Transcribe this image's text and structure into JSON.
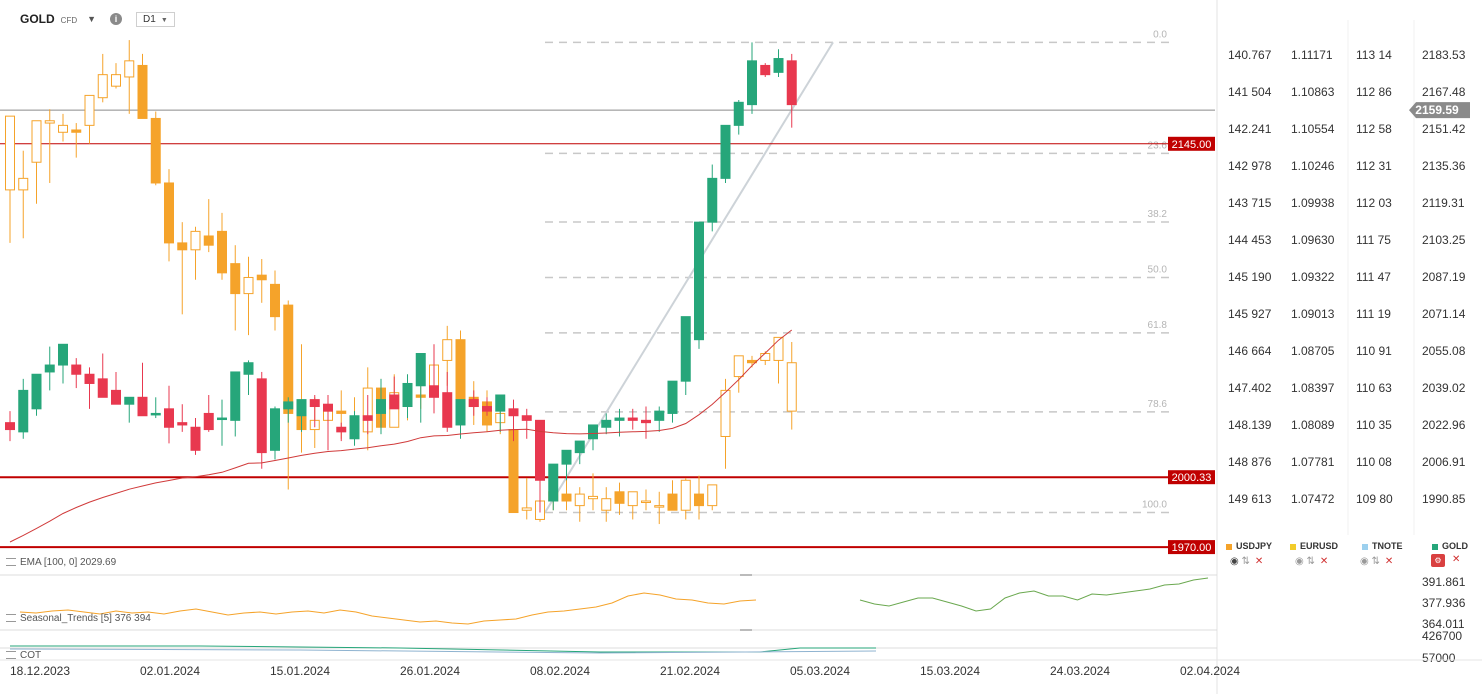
{
  "header": {
    "symbol": "GOLD",
    "type": "CFD",
    "info": "i",
    "timeframe": "D1"
  },
  "colors": {
    "bull": "#26a67a",
    "bear": "#e8384f",
    "compare": "#f5a32a",
    "ema": "#d03a3a",
    "level": "#c00000",
    "price_tag": "#8a8a8a"
  },
  "chart_data": {
    "type": "candlestick",
    "title": "GOLD CFD D1",
    "ylim": [
      1970.0,
      2190.0
    ],
    "x_labels": [
      "18.12.2023",
      "02.01.2024",
      "15.01.2024",
      "26.01.2024",
      "08.02.2024",
      "21.02.2024",
      "05.03.2024",
      "15.03.2024",
      "24.03.2024",
      "02.04.2024"
    ],
    "y_ticks": [
      "2183.53",
      "2167.48",
      "2151.42",
      "2135.36",
      "2119.31",
      "2103.25",
      "2087.19",
      "2071.14",
      "2055.08",
      "2039.02",
      "2022.96",
      "2006.91",
      "1990.85"
    ],
    "compare_ticks": {
      "usdjpy": [
        "140.767",
        "141 504",
        "142.241",
        "142 978",
        "143 715",
        "144 453",
        "145 190",
        "145 927",
        "146 664",
        "147.402",
        "148.139",
        "148 876",
        "149 613"
      ],
      "eurusd": [
        "1.11171",
        "1.10863",
        "1.10554",
        "1.10246",
        "1.09938",
        "1.09630",
        "1.09322",
        "1.09013",
        "1.08705",
        "1.08397",
        "1.08089",
        "1.07781",
        "1.07472"
      ],
      "tnote": [
        "113 14",
        "112 86",
        "112 58",
        "112 31",
        "112 03",
        "111 75",
        "111 47",
        "111 19",
        "110 91",
        "110 63",
        "110 35",
        "110 08",
        "109 80"
      ]
    },
    "last_price": "2159.59",
    "last_price_value": 2159.59,
    "levels": [
      {
        "value": 2145.0,
        "label": "2145.00"
      },
      {
        "value": 2000.33,
        "label": "2000.33"
      },
      {
        "value": 1970.0,
        "label": "1970.00"
      }
    ],
    "fib_labels": [
      "0.0",
      "23.6",
      "38.2",
      "50.0",
      "61.8",
      "78.6",
      "100.0"
    ],
    "fib_high": 2189.0,
    "fib_low": 1985.0,
    "gold_candles": [
      [
        2024,
        2029,
        2016,
        2021
      ],
      [
        2020,
        2043,
        2017,
        2038
      ],
      [
        2030,
        2045,
        2027,
        2045
      ],
      [
        2046,
        2057,
        2038,
        2049
      ],
      [
        2049,
        2058,
        2041,
        2058
      ],
      [
        2049,
        2052,
        2039,
        2045
      ],
      [
        2045,
        2048,
        2030,
        2041
      ],
      [
        2043,
        2054,
        2038,
        2035
      ],
      [
        2038,
        2046,
        2035,
        2032
      ],
      [
        2032,
        2034,
        2024,
        2035
      ],
      [
        2035,
        2050,
        2028,
        2027
      ],
      [
        2028,
        2035,
        2026,
        2028
      ],
      [
        2030,
        2040,
        2015,
        2022
      ],
      [
        2024,
        2032,
        2020,
        2023
      ],
      [
        2022,
        2026,
        2010,
        2012
      ],
      [
        2028,
        2036,
        2020,
        2021
      ],
      [
        2026,
        2034,
        2014,
        2026
      ],
      [
        2025,
        2045,
        2018,
        2046
      ],
      [
        2045,
        2051,
        2036,
        2050
      ],
      [
        2043,
        2046,
        2004,
        2011
      ],
      [
        2012,
        2031,
        2008,
        2030
      ],
      [
        2030,
        2035,
        2024,
        2033
      ],
      [
        2027,
        2033,
        2020,
        2034
      ],
      [
        2034,
        2036,
        2022,
        2031
      ],
      [
        2032,
        2036,
        2012,
        2029
      ],
      [
        2022,
        2024,
        2016,
        2020
      ],
      [
        2017,
        2029,
        2014,
        2027
      ],
      [
        2027,
        2036,
        2019,
        2025
      ],
      [
        2028,
        2043,
        2019,
        2034
      ],
      [
        2036,
        2044,
        2032,
        2030
      ],
      [
        2031,
        2045,
        2026,
        2041
      ],
      [
        2040,
        2047,
        2024,
        2054
      ],
      [
        2040,
        2058,
        2028,
        2035
      ],
      [
        2037,
        2046,
        2020,
        2022
      ],
      [
        2023,
        2032,
        2017,
        2034
      ],
      [
        2034,
        2038,
        2027,
        2031
      ],
      [
        2031,
        2035,
        2027,
        2029
      ],
      [
        2029,
        2033,
        2020,
        2036
      ],
      [
        2030,
        2034,
        2016,
        2027
      ],
      [
        2027,
        2030,
        2017,
        2025
      ],
      [
        2025,
        2024,
        1985,
        1999
      ],
      [
        1990,
        1998,
        1986,
        2006
      ],
      [
        2006,
        2009,
        1999,
        2012
      ],
      [
        2011,
        2015,
        2006,
        2016
      ],
      [
        2017,
        2022,
        2012,
        2023
      ],
      [
        2022,
        2028,
        2019,
        2025
      ],
      [
        2025,
        2030,
        2018,
        2026
      ],
      [
        2026,
        2030,
        2021,
        2025
      ],
      [
        2025,
        2031,
        2017,
        2024
      ],
      [
        2025,
        2031,
        2020,
        2029
      ],
      [
        2028,
        2042,
        2024,
        2042
      ],
      [
        2042,
        2067,
        2036,
        2070
      ],
      [
        2060,
        2111,
        2056,
        2111
      ],
      [
        2111,
        2136,
        2107,
        2130
      ],
      [
        2130,
        2148,
        2128,
        2153
      ],
      [
        2153,
        2164,
        2149,
        2163
      ],
      [
        2162,
        2189,
        2158,
        2181
      ],
      [
        2179,
        2180,
        2174,
        2175
      ],
      [
        2176,
        2186,
        2174,
        2182
      ],
      [
        2181,
        2184,
        2152,
        2162
      ]
    ],
    "usdjpy_candles": [
      [
        2125,
        2157,
        2102,
        2157
      ],
      [
        2125,
        2142,
        2104,
        2130
      ],
      [
        2137,
        2150,
        2119,
        2155
      ],
      [
        2154,
        2160,
        2128,
        2155
      ],
      [
        2150,
        2158,
        2146,
        2153
      ],
      [
        2151,
        2154,
        2139,
        2150
      ],
      [
        2153,
        2165,
        2145,
        2166
      ],
      [
        2165,
        2184,
        2163,
        2175
      ],
      [
        2170,
        2180,
        2169,
        2175
      ],
      [
        2174,
        2190,
        2158,
        2181
      ],
      [
        2179,
        2184,
        2157,
        2156
      ],
      [
        2156,
        2159,
        2127,
        2128
      ],
      [
        2128,
        2134,
        2094,
        2102
      ],
      [
        2102,
        2111,
        2071,
        2099
      ],
      [
        2099,
        2109,
        2086,
        2107
      ],
      [
        2105,
        2121,
        2098,
        2101
      ],
      [
        2107,
        2115,
        2086,
        2089
      ],
      [
        2093,
        2101,
        2064,
        2080
      ],
      [
        2080,
        2096,
        2062,
        2087
      ],
      [
        2088,
        2095,
        2076,
        2086
      ],
      [
        2084,
        2090,
        2064,
        2070
      ],
      [
        2075,
        2077,
        1995,
        2028
      ],
      [
        2028,
        2058,
        2011,
        2021
      ],
      [
        2021,
        2035,
        2013,
        2025
      ],
      [
        2025,
        2030,
        2017,
        2029
      ],
      [
        2029,
        2038,
        2017,
        2028
      ],
      [
        2026,
        2035,
        2017,
        2020
      ],
      [
        2020,
        2048,
        2012,
        2039
      ],
      [
        2039,
        2043,
        2019,
        2022
      ],
      [
        2022,
        2045,
        2024,
        2037
      ],
      [
        2037,
        2044,
        2025,
        2036
      ],
      [
        2036,
        2046,
        2030,
        2035
      ],
      [
        2036,
        2053,
        2029,
        2049
      ],
      [
        2051,
        2066,
        2040,
        2060
      ],
      [
        2060,
        2064,
        2026,
        2027
      ],
      [
        2035,
        2042,
        2023,
        2031
      ],
      [
        2033,
        2038,
        2020,
        2023
      ],
      [
        2024,
        2031,
        2019,
        2028
      ],
      [
        2021,
        2031,
        2014,
        1985
      ],
      [
        1986,
        2000,
        1982,
        1987
      ],
      [
        1982,
        2002,
        1981,
        1990
      ],
      [
        1990,
        2005,
        1986,
        1994
      ],
      [
        1993,
        2005,
        1986,
        1990
      ],
      [
        1988,
        1996,
        1981,
        1993
      ],
      [
        1991,
        2002,
        1986,
        1992
      ],
      [
        1986,
        1996,
        1981,
        1991
      ],
      [
        1994,
        1998,
        1984,
        1989
      ],
      [
        1988,
        1994,
        1982,
        1994
      ],
      [
        1990,
        1995,
        1986,
        1990
      ],
      [
        1988,
        1994,
        1980,
        1988
      ],
      [
        1993,
        1999,
        1986,
        1986
      ],
      [
        1986,
        2000,
        1982,
        1999
      ],
      [
        1993,
        2001,
        1982,
        1988
      ],
      [
        1988,
        1997,
        1986,
        1997
      ],
      [
        2018,
        2043,
        2004,
        2038
      ],
      [
        2044,
        2053,
        2037,
        2053
      ],
      [
        2051,
        2053,
        2048,
        2050
      ],
      [
        2051,
        2055,
        2049,
        2054
      ],
      [
        2051,
        2061,
        2041,
        2061
      ],
      [
        2029,
        2059,
        2021,
        2050
      ]
    ],
    "ema": {
      "label": "EMA [100, 0] 2029.69"
    },
    "seasonal_trends": {
      "label": "Seasonal_Trends [5] 376 394",
      "ticks": [
        "391.861",
        "377.936",
        "364.011"
      ]
    },
    "cot": {
      "label": "COT",
      "ticks": [
        "426700",
        "57000"
      ]
    },
    "legend": [
      "USDJPY",
      "EURUSD",
      "TNOTE",
      "GOLD"
    ]
  }
}
